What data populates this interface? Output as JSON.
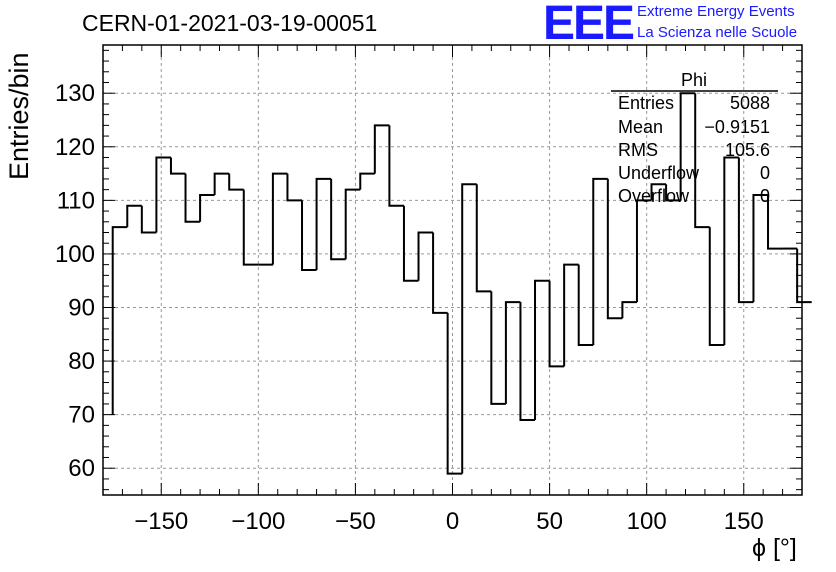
{
  "header": {
    "title": "CERN-01-2021-03-19-00051",
    "logo_mark": "EEE",
    "logo_line1": "Extreme Energy Events",
    "logo_line2": "La Scienza nelle Scuole"
  },
  "stats": {
    "name": "Phi",
    "rows": [
      {
        "key": "Entries",
        "value": "5088"
      },
      {
        "key": "Mean",
        "value": "−0.9151"
      },
      {
        "key": "RMS",
        "value": "105.6"
      },
      {
        "key": "Underflow",
        "value": "0"
      },
      {
        "key": "Overflow",
        "value": "0"
      }
    ]
  },
  "colors": {
    "logo": "#1a1aff",
    "line": "#000000",
    "grid": "#999999"
  },
  "chart_data": {
    "type": "histogram",
    "title": "CERN-01-2021-03-19-00051",
    "xlabel": "ϕ [°]",
    "ylabel": "Entries/bin",
    "xlim": [
      -180,
      180
    ],
    "ylim": [
      55,
      139
    ],
    "bin_edges_start": -175,
    "bin_width": 7.5,
    "values": [
      105,
      109,
      104,
      118,
      115,
      106,
      111,
      115,
      112,
      98,
      98,
      115,
      110,
      97,
      114,
      99,
      112,
      115,
      124,
      109,
      95,
      104,
      89,
      59,
      113,
      93,
      72,
      91,
      69,
      95,
      79,
      98,
      83,
      114,
      88,
      91,
      110,
      113,
      110,
      130,
      105,
      83,
      118,
      91,
      111,
      101,
      101,
      91
    ],
    "left_edge_value": 70,
    "x_ticks": [
      "−150",
      "−100",
      "−50",
      "0",
      "50",
      "100",
      "150"
    ],
    "x_tick_values": [
      -150,
      -100,
      -50,
      0,
      50,
      100,
      150
    ],
    "y_ticks": [
      "60",
      "70",
      "80",
      "90",
      "100",
      "110",
      "120",
      "130"
    ],
    "y_tick_values": [
      60,
      70,
      80,
      90,
      100,
      110,
      120,
      130
    ],
    "grid": true
  }
}
